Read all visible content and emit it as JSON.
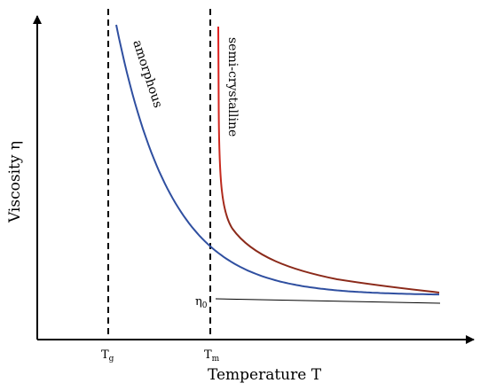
{
  "chart_data": {
    "type": "line",
    "xlabel": "Temperature T",
    "ylabel": "Viscosity η",
    "markers": [
      {
        "name": "Tg",
        "base": "T",
        "sub": "g"
      },
      {
        "name": "Tm",
        "base": "T",
        "sub": "m"
      }
    ],
    "baseline_label": {
      "base": "η",
      "sub": "0"
    },
    "series": [
      {
        "name": "amorphous",
        "color": "#2f4fa0"
      },
      {
        "name": "semi-crystalline",
        "color_top": "#e02020",
        "color_bottom": "#8b2a1a"
      }
    ],
    "axis_color": "#000000",
    "grid": false,
    "legend": "none"
  }
}
